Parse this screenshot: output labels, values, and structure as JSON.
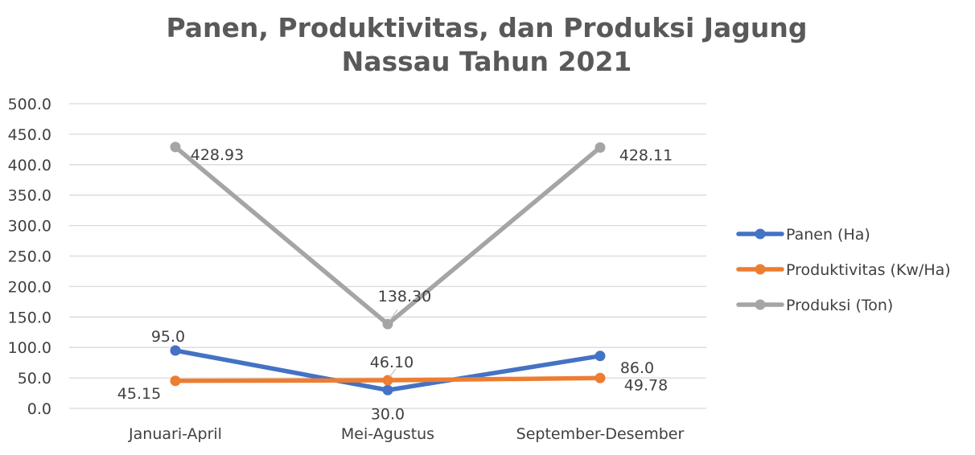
{
  "chart_data": {
    "type": "line",
    "title": [
      "Panen, Produktivitas, dan Produksi Jagung",
      "Nassau Tahun 2021"
    ],
    "xlabel": "",
    "ylabel": "",
    "categories": [
      "Januari-April",
      "Mei-Agustus",
      "September-Desember"
    ],
    "ylim": [
      0,
      500
    ],
    "yticks": [
      0,
      50,
      100,
      150,
      200,
      250,
      300,
      350,
      400,
      450,
      500
    ],
    "ytick_labels": [
      "0.0",
      "50.0",
      "100.0",
      "150.0",
      "200.0",
      "250.0",
      "300.0",
      "350.0",
      "400.0",
      "450.0",
      "500.0"
    ],
    "grid": true,
    "legend_position": "right",
    "series": [
      {
        "name": "Panen (Ha)",
        "color": "#4472C4",
        "values": [
          95.0,
          30.0,
          86.0
        ],
        "labels": [
          "95.0",
          "30.0",
          "86.0"
        ]
      },
      {
        "name": "Produktivitas (Kw/Ha)",
        "color": "#ED7D31",
        "values": [
          45.15,
          46.1,
          49.78
        ],
        "labels": [
          "45.15",
          "46.10",
          "49.78"
        ]
      },
      {
        "name": "Produksi (Ton)",
        "color": "#A5A5A5",
        "values": [
          428.93,
          138.3,
          428.11
        ],
        "labels": [
          "428.93",
          "138.30",
          "428.11"
        ]
      }
    ]
  }
}
